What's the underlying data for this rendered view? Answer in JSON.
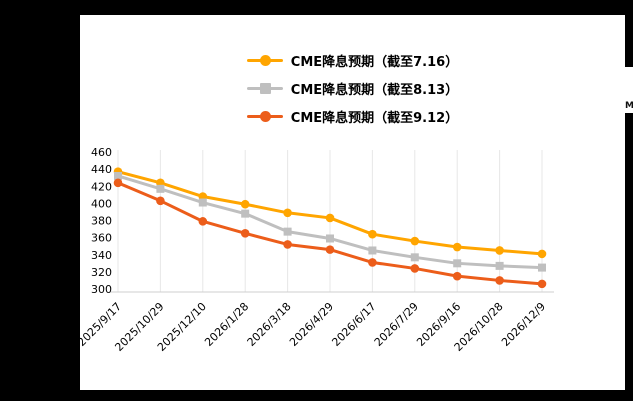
{
  "chart_data": {
    "type": "line",
    "title": "",
    "categories": [
      "2025/9/17",
      "2025/10/29",
      "2025/12/10",
      "2026/1/28",
      "2026/3/18",
      "2026/4/29",
      "2026/6/17",
      "2026/7/29",
      "2026/9/16",
      "2026/10/28",
      "2026/12/9"
    ],
    "series": [
      {
        "name": "CME降息预期（截至7.16）",
        "color": "#FFA500",
        "marker": "circle",
        "values": [
          437,
          424,
          408,
          399,
          389,
          383,
          364,
          356,
          349,
          345,
          341
        ]
      },
      {
        "name": "CME降息预期（截至8.13）",
        "color": "#BFBFBF",
        "marker": "square",
        "values": [
          432,
          417,
          401,
          388,
          367,
          359,
          345,
          337,
          330,
          327,
          325
        ]
      },
      {
        "name": "CME降息预期（截至9.12）",
        "color": "#EC5D1A",
        "marker": "circle",
        "values": [
          424,
          403,
          379,
          365,
          352,
          346,
          331,
          324,
          315,
          310,
          306
        ]
      }
    ],
    "xlabel": "",
    "ylabel": "",
    "ylim": [
      300,
      460
    ],
    "ytick_step": 20,
    "grid": "vertical",
    "gridline_color": "#E7E7E7",
    "axis_line_color": "#CFCFCF",
    "tick_label_color": "#000000",
    "legend_position": "top"
  },
  "edge_fragment": {
    "text": "M"
  }
}
